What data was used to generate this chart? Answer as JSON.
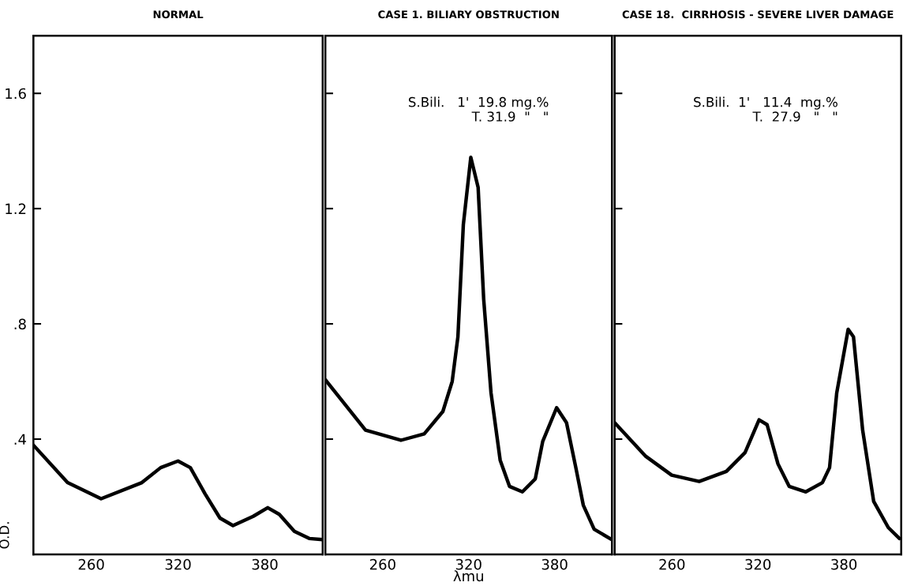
{
  "chart_data": [
    {
      "type": "line",
      "title": "NORMAL",
      "ylabel": "O.D.",
      "xlim": [
        220,
        420
      ],
      "ylim": [
        0,
        1.8
      ],
      "xticks": [
        260,
        320,
        380
      ],
      "yticks": [
        {
          "value": 0.4,
          "label": ".4"
        },
        {
          "value": 0.8,
          "label": ".8"
        },
        {
          "value": 1.2,
          "label": "1.2"
        },
        {
          "value": 1.6,
          "label": "1.6"
        }
      ],
      "x": [
        220,
        243.6,
        266.8,
        295,
        308,
        320,
        328.5,
        338.7,
        349,
        358,
        372,
        382,
        390,
        400.4,
        410.7,
        420
      ],
      "series": [
        {
          "color": "#000000",
          "values": [
            0.379,
            0.249,
            0.193,
            0.249,
            0.301,
            0.324,
            0.301,
            0.21,
            0.126,
            0.1,
            0.132,
            0.162,
            0.139,
            0.08,
            0.055,
            0.051
          ]
        }
      ]
    },
    {
      "type": "line",
      "title": "CASE 1. BILIARY OBSTRUCTION",
      "xlabel": "λmu",
      "xlim": [
        220,
        420
      ],
      "ylim": [
        0,
        1.8
      ],
      "xticks": [
        260,
        320,
        380
      ],
      "yticks": [
        {
          "value": 0.4,
          "label": null
        },
        {
          "value": 0.8,
          "label": null
        },
        {
          "value": 1.2,
          "label": null
        },
        {
          "value": 1.6,
          "label": null
        }
      ],
      "tick_labels": "x",
      "annotations": [
        "S.Bili.   1'  19.8 mg.%",
        "T. 31.9  \"   \""
      ],
      "x": [
        220,
        248,
        272.7,
        289,
        302,
        308.5,
        312.5,
        316.3,
        321.5,
        326.6,
        330.5,
        335.6,
        342,
        348.5,
        357.5,
        366.5,
        371.7,
        381.4,
        388.3,
        394.8,
        400,
        407.6,
        420
      ],
      "series": [
        {
          "color": "#000000",
          "values": [
            0.606,
            0.431,
            0.396,
            0.418,
            0.496,
            0.6,
            0.755,
            1.145,
            1.378,
            1.274,
            0.885,
            0.561,
            0.327,
            0.236,
            0.217,
            0.262,
            0.392,
            0.509,
            0.457,
            0.301,
            0.171,
            0.087,
            0.051
          ]
        }
      ]
    },
    {
      "type": "line",
      "title": "CASE 18.  CIRRHOSIS - SEVERE LIVER DAMAGE",
      "xlim": [
        220,
        420
      ],
      "ylim": [
        0,
        1.8
      ],
      "xticks": [
        260,
        320,
        380
      ],
      "yticks": [
        {
          "value": 0.4,
          "label": null
        },
        {
          "value": 0.8,
          "label": null
        },
        {
          "value": 1.2,
          "label": null
        },
        {
          "value": 1.6,
          "label": null
        }
      ],
      "tick_labels": "x",
      "annotations": [
        "S.Bili.  1'   11.4  mg.%",
        "T.  27.9   \"   \""
      ],
      "x": [
        220,
        241.8,
        259.8,
        279,
        298,
        311,
        320.8,
        326.4,
        334,
        341.8,
        353.4,
        365,
        370,
        375,
        383,
        386.7,
        393.1,
        400.8,
        411,
        418.8
      ],
      "series": [
        {
          "color": "#000000",
          "values": [
            0.457,
            0.34,
            0.275,
            0.253,
            0.288,
            0.353,
            0.467,
            0.45,
            0.314,
            0.236,
            0.217,
            0.249,
            0.301,
            0.56,
            0.781,
            0.755,
            0.431,
            0.184,
            0.093,
            0.055
          ]
        }
      ]
    }
  ]
}
